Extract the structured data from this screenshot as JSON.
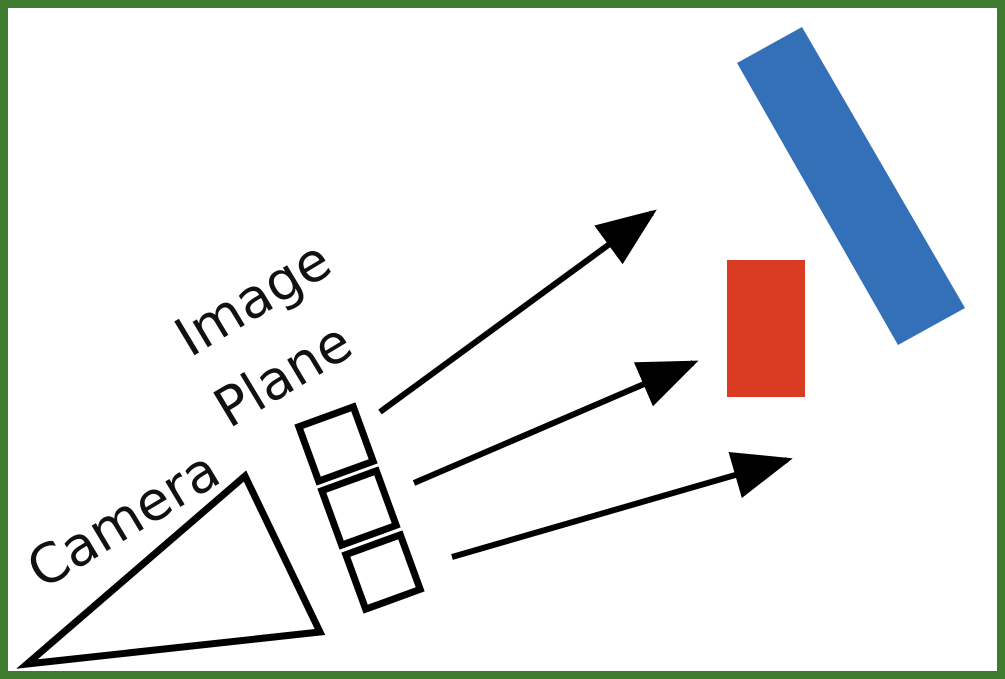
{
  "labels": {
    "camera": "Camera",
    "image_plane_line1": "Image",
    "image_plane_line2": "Plane"
  },
  "colors": {
    "frame": "#3e7b2e",
    "ink": "#000000",
    "text": "#111111",
    "red_object": "#d93c23",
    "blue_object": "#3370b8"
  },
  "icons": {
    "camera": "camera-triangle-icon",
    "ray": "arrow-right-icon",
    "pixel": "pixel-square-icon"
  }
}
